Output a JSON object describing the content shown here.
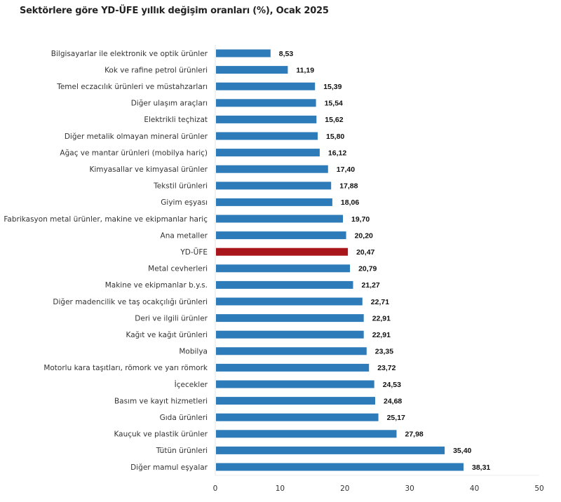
{
  "chart_data": {
    "type": "bar",
    "orientation": "horizontal",
    "title": "Sektörlere göre YD-ÜFE yıllık değişim oranları (%), Ocak 2025",
    "xlabel": "",
    "ylabel": "",
    "xlim": [
      0,
      50
    ],
    "xticks": [
      0,
      10,
      20,
      30,
      40,
      50
    ],
    "xtick_labels": [
      "0",
      "10",
      "20",
      "30",
      "40",
      "50"
    ],
    "grid": false,
    "legend": null,
    "colors": {
      "default": "#2E7BBA",
      "highlight": "#A8161B"
    },
    "highlight_category": "YD-ÜFE",
    "categories": [
      "Bilgisayarlar ile elektronik ve optik ürünler",
      "Kok ve rafine petrol ürünleri",
      "Temel eczacılık ürünleri ve müstahzarları",
      "Diğer ulaşım araçları",
      "Elektrikli teçhizat",
      "Diğer metalik olmayan mineral ürünler",
      "Ağaç ve mantar ürünleri (mobilya hariç)",
      "Kimyasallar ve kimyasal ürünler",
      "Tekstil ürünleri",
      "Giyim eşyası",
      "Fabrikasyon metal ürünler, makine ve ekipmanlar hariç",
      "Ana metaller",
      "YD-ÜFE",
      "Metal cevherleri",
      "Makine ve ekipmanlar b.y.s.",
      "Diğer madencilik ve taş ocakçılığı ürünleri",
      "Deri ve ilgili ürünler",
      "Kağıt ve kağıt ürünleri",
      "Mobilya",
      "Motorlu kara taşıtları, römork ve yarı römork",
      "İçecekler",
      "Basım ve kayıt hizmetleri",
      "Gıda ürünleri",
      "Kauçuk ve plastik ürünler",
      "Tütün ürünleri",
      "Diğer mamul eşyalar"
    ],
    "values": [
      8.53,
      11.19,
      15.39,
      15.54,
      15.62,
      15.8,
      16.12,
      17.4,
      17.88,
      18.06,
      19.7,
      20.2,
      20.47,
      20.79,
      21.27,
      22.71,
      22.91,
      22.91,
      23.35,
      23.72,
      24.53,
      24.68,
      25.17,
      27.98,
      35.4,
      38.31
    ],
    "value_labels": [
      "8,53",
      "11,19",
      "15,39",
      "15,54",
      "15,62",
      "15,80",
      "16,12",
      "17,40",
      "17,88",
      "18,06",
      "19,70",
      "20,20",
      "20,47",
      "20,79",
      "21,27",
      "22,71",
      "22,91",
      "22,91",
      "23,35",
      "23,72",
      "24,53",
      "24,68",
      "25,17",
      "27,98",
      "35,40",
      "38,31"
    ]
  }
}
